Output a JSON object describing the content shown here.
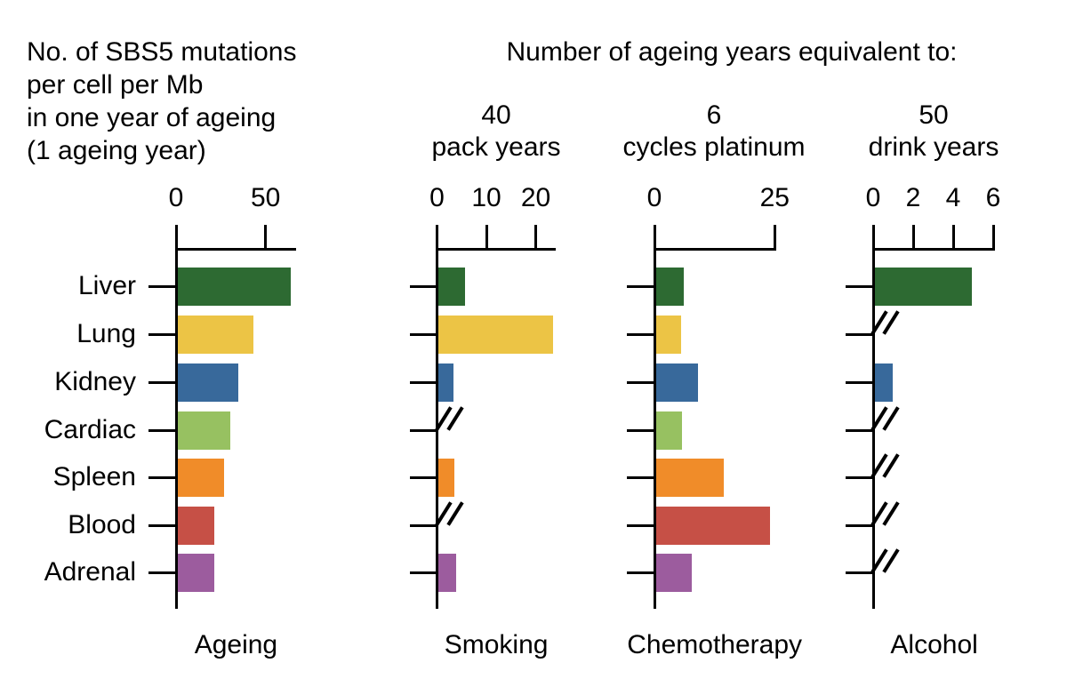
{
  "figure": {
    "left_title_lines": [
      "No. of SBS5 mutations",
      "per cell per Mb",
      "in one year of ageing",
      "(1 ageing year)"
    ],
    "right_title": "Number of ageing years equivalent to:"
  },
  "chart_data": {
    "type": "bar",
    "orientation": "horizontal",
    "grid": false,
    "legend": false,
    "categories": [
      "Liver",
      "Lung",
      "Kidney",
      "Cardiac",
      "Spleen",
      "Blood",
      "Adrenal"
    ],
    "bar_colors": [
      "#2d6a32",
      "#ecc445",
      "#38699b",
      "#97c161",
      "#f08c29",
      "#c65046",
      "#9c5c9e"
    ],
    "missing_marker": "//",
    "panels": [
      {
        "label": "Ageing",
        "header_amount": "",
        "header_caption": "",
        "axis_ticks": [
          0,
          50
        ],
        "axis_max": 67,
        "values": [
          64,
          43,
          34.5,
          30,
          26.5,
          21,
          21
        ]
      },
      {
        "label": "Smoking",
        "header_amount": "40",
        "header_caption": "pack years",
        "axis_ticks": [
          0,
          10,
          20
        ],
        "axis_max": 24,
        "values": [
          5.5,
          23.5,
          3.3,
          null,
          3.5,
          null,
          3.7
        ]
      },
      {
        "label": "Chemotherapy",
        "header_amount": "6",
        "header_caption": "cycles platinum",
        "axis_ticks": [
          0,
          25
        ],
        "axis_max": 25,
        "values": [
          6,
          5.4,
          8.9,
          5.6,
          14.4,
          24,
          7.6
        ]
      },
      {
        "label": "Alcohol",
        "header_amount": "50",
        "header_caption": "drink years",
        "axis_ticks": [
          0,
          2,
          4,
          6
        ],
        "axis_max": 6.1,
        "values": [
          4.9,
          null,
          0.95,
          null,
          null,
          null,
          null
        ]
      }
    ]
  }
}
